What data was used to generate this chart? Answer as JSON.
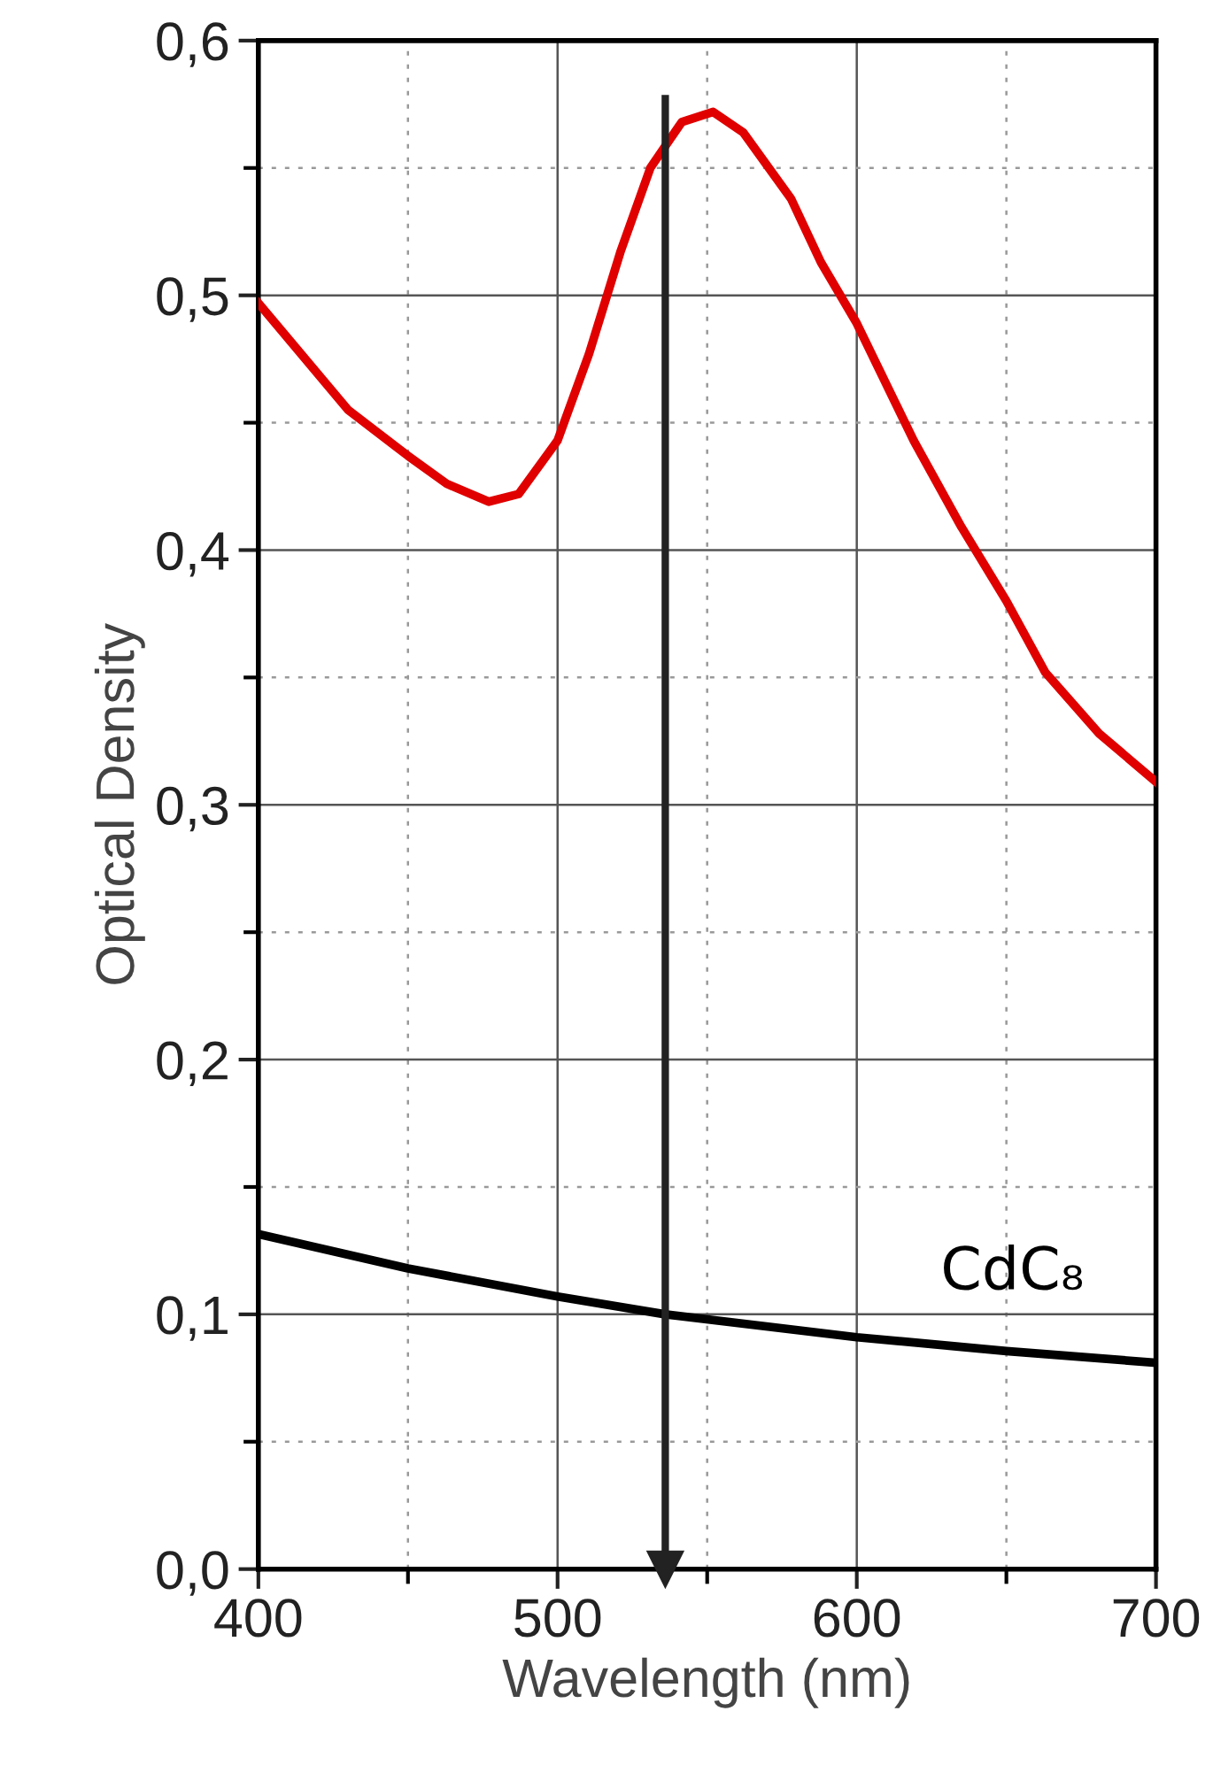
{
  "chart_data": {
    "type": "line",
    "xlabel": "Wavelength (nm)",
    "ylabel": "Optical Density",
    "xlim": [
      400,
      700
    ],
    "ylim": [
      0,
      0.6
    ],
    "xticks": [
      400,
      500,
      600,
      700
    ],
    "yticks": [
      {
        "value": 0,
        "label": "0,0"
      },
      {
        "value": 0.1,
        "label": "0,1"
      },
      {
        "value": 0.2,
        "label": "0,2"
      },
      {
        "value": 0.3,
        "label": "0,3"
      },
      {
        "value": 0.4,
        "label": "0,4"
      },
      {
        "value": 0.5,
        "label": "0,5"
      },
      {
        "value": 0.6,
        "label": "0,6"
      }
    ],
    "grid": true,
    "marker": "none",
    "line_style": "solid",
    "series": [
      {
        "color": "#e00000",
        "x": [
          400,
          430,
          450,
          463,
          477,
          487,
          500,
          510.5,
          521,
          531,
          541.5,
          552,
          562,
          578,
          588,
          600,
          619,
          635,
          650,
          663,
          681,
          700
        ],
        "values": [
          0.497,
          0.455,
          0.437,
          0.426,
          0.419,
          0.422,
          0.443,
          0.477,
          0.517,
          0.55,
          0.568,
          0.572,
          0.564,
          0.538,
          0.513,
          0.489,
          0.443,
          0.409,
          0.38,
          0.352,
          0.328,
          0.309
        ]
      },
      {
        "name": "CdC₈",
        "color": "#000000",
        "x": [
          400,
          450,
          500,
          536,
          600,
          650,
          700
        ],
        "values": [
          0.1315,
          0.118,
          0.107,
          0.1,
          0.091,
          0.0856,
          0.081
        ]
      }
    ],
    "ref_lines": [
      {
        "axis": "x",
        "value": 536,
        "color": "#222222"
      }
    ]
  }
}
